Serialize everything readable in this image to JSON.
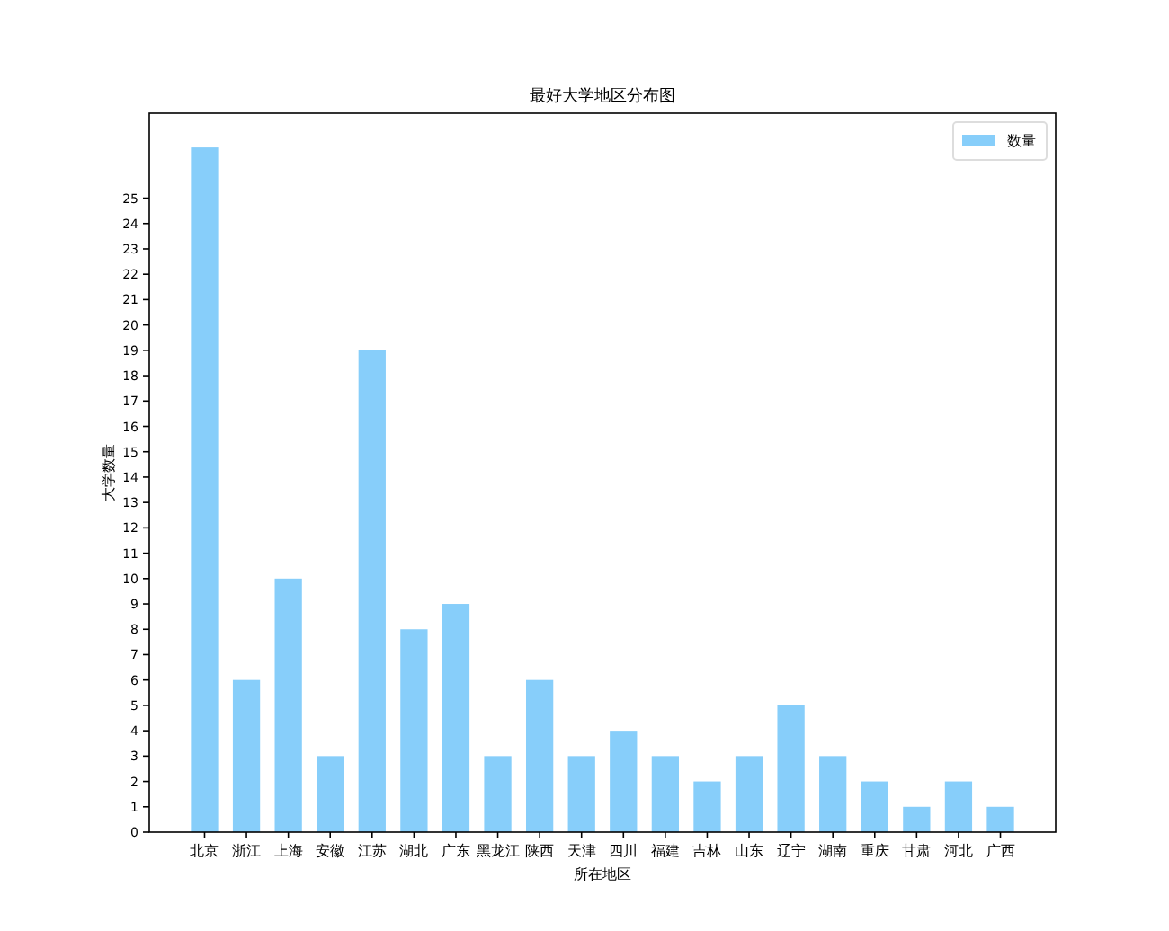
{
  "chart_data": {
    "type": "bar",
    "title": "最好大学地区分布图",
    "xlabel": "所在地区",
    "ylabel": "大学数量",
    "categories": [
      "北京",
      "浙江",
      "上海",
      "安徽",
      "江苏",
      "湖北",
      "广东",
      "黑龙江",
      "陕西",
      "天津",
      "四川",
      "福建",
      "吉林",
      "山东",
      "辽宁",
      "湖南",
      "重庆",
      "甘肃",
      "河北",
      "广西"
    ],
    "series": [
      {
        "name": "数量",
        "color": "#87cefa",
        "values": [
          27,
          6,
          10,
          3,
          19,
          8,
          9,
          3,
          6,
          3,
          4,
          3,
          2,
          3,
          5,
          3,
          2,
          1,
          2,
          1
        ]
      }
    ],
    "ylim": [
      0,
      28.35
    ],
    "yticks": [
      0,
      1,
      2,
      3,
      4,
      5,
      6,
      7,
      8,
      9,
      10,
      11,
      12,
      13,
      14,
      15,
      16,
      17,
      18,
      19,
      20,
      21,
      22,
      23,
      24,
      25
    ],
    "legend": "top right",
    "grid": false
  }
}
